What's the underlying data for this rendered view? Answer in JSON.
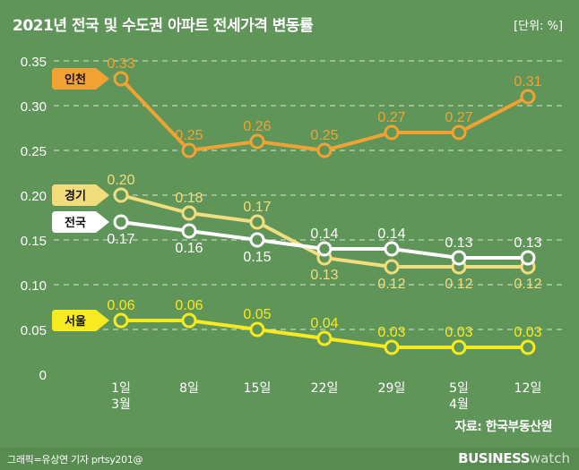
{
  "title": "2021년 전국 및 수도권 아파트 전세가격 변동률",
  "unit": "[단위: %]",
  "source": "자료: 한국부동산원",
  "credit": "그래픽=유상연 기자 prtsy201@",
  "logo": {
    "part1": "BUSINESS",
    "part2": "watch"
  },
  "chart_data": {
    "type": "line",
    "title": "2021년 전국 및 수도권 아파트 전세가격 변동률",
    "ylabel": "",
    "xlabel": "",
    "ylim": [
      0,
      0.35
    ],
    "yticks": [
      "0",
      "0.05",
      "0.10",
      "0.15",
      "0.20",
      "0.25",
      "0.30",
      "0.35"
    ],
    "grid": true,
    "categories": [
      [
        "1일",
        "3월"
      ],
      [
        "8일"
      ],
      [
        "15일"
      ],
      [
        "22일"
      ],
      [
        "29일"
      ],
      [
        "5일",
        "4월"
      ],
      [
        "12일"
      ]
    ],
    "series": [
      {
        "name": "인천",
        "color": "#f0a232",
        "values": [
          0.33,
          0.25,
          0.26,
          0.25,
          0.27,
          0.27,
          0.31
        ]
      },
      {
        "name": "경기",
        "color": "#f2dd7c",
        "values": [
          0.2,
          0.18,
          0.17,
          0.13,
          0.12,
          0.12,
          0.12
        ]
      },
      {
        "name": "전국",
        "color": "#ffffff",
        "values": [
          0.17,
          0.16,
          0.15,
          0.14,
          0.14,
          0.13,
          0.13
        ]
      },
      {
        "name": "서울",
        "color": "#f7ea1f",
        "values": [
          0.06,
          0.06,
          0.05,
          0.04,
          0.03,
          0.03,
          0.03
        ]
      }
    ]
  }
}
